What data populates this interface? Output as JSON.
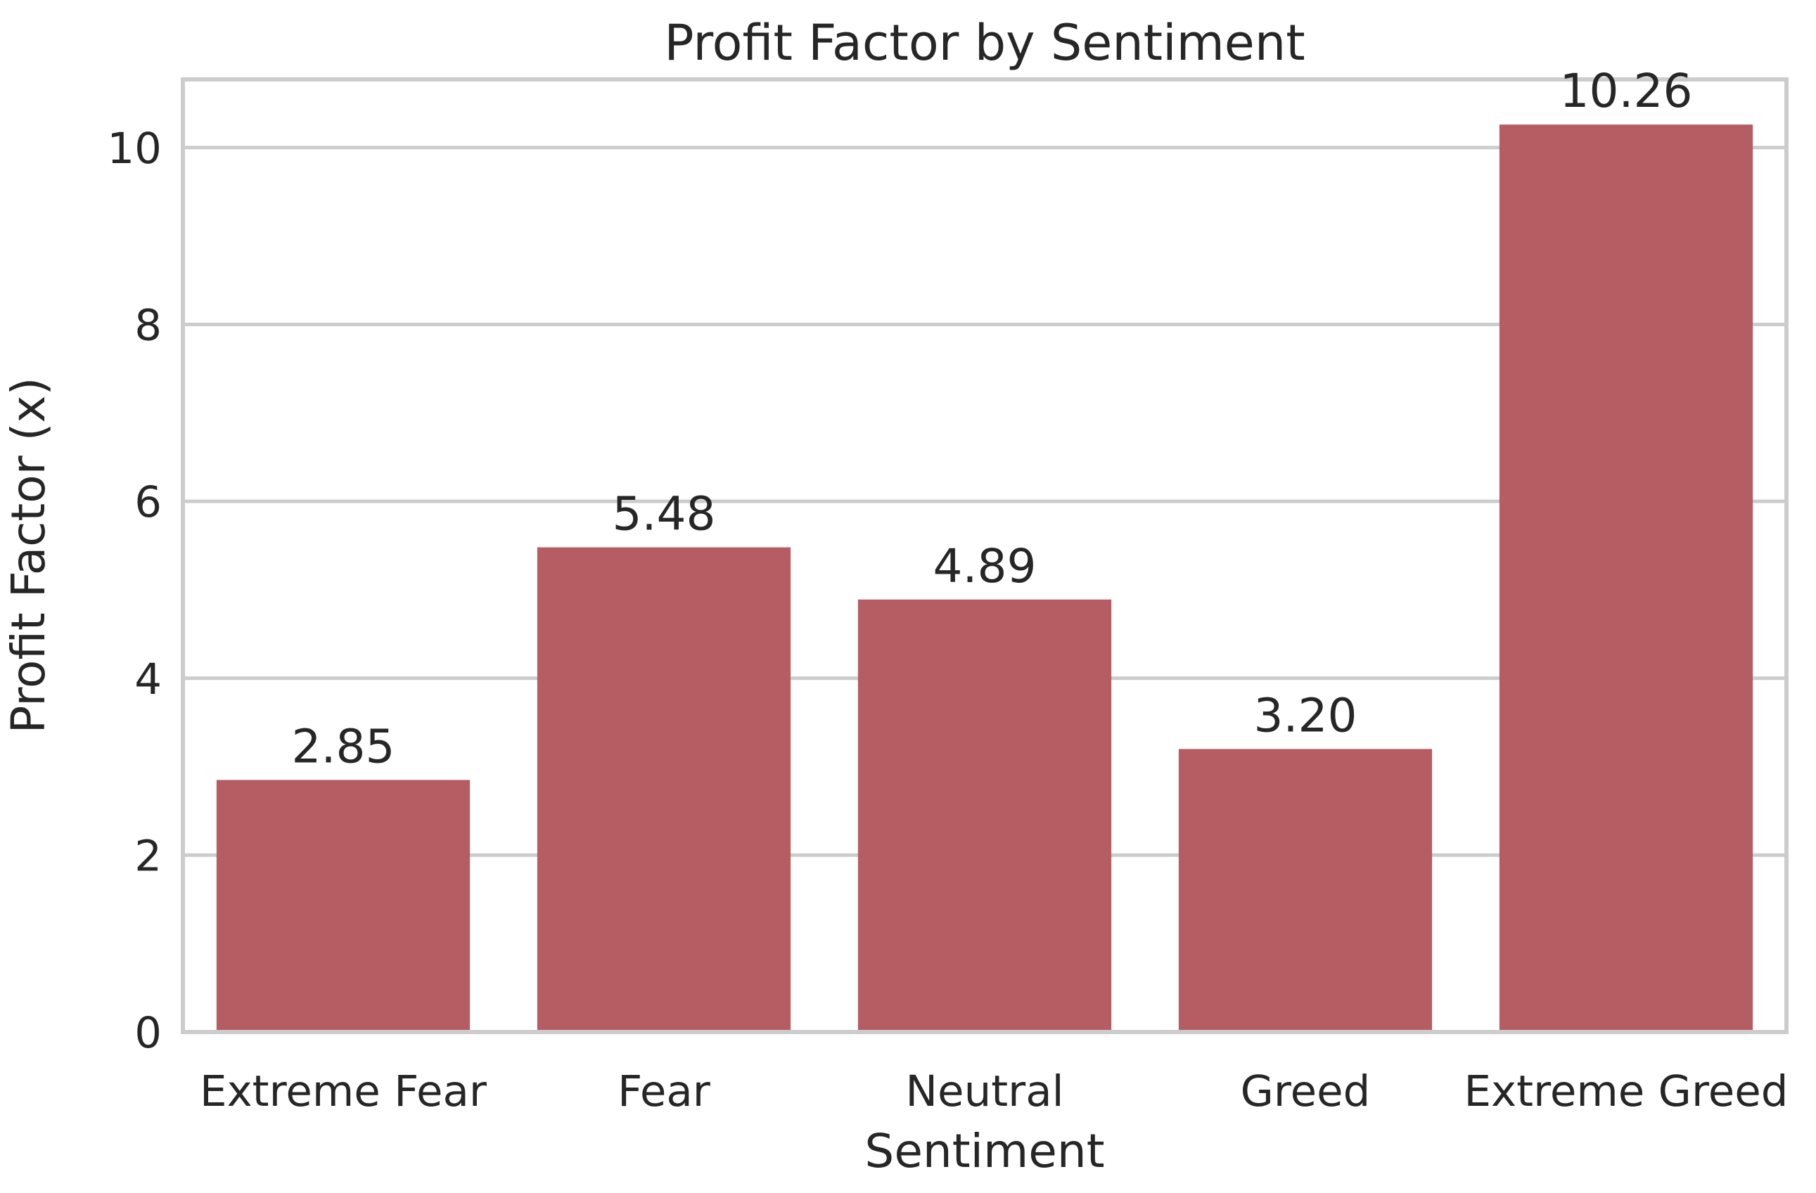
{
  "chart_data": {
    "type": "bar",
    "title": "Profit Factor by Sentiment",
    "xlabel": "Sentiment",
    "ylabel": "Profit Factor (x)",
    "categories": [
      "Extreme Fear",
      "Fear",
      "Neutral",
      "Greed",
      "Extreme Greed"
    ],
    "values": [
      2.85,
      5.48,
      4.89,
      3.2,
      10.26
    ],
    "value_labels": [
      "2.85",
      "5.48",
      "4.89",
      "3.20",
      "10.26"
    ],
    "ylim": [
      0,
      10.77
    ],
    "yticks": [
      0,
      2,
      4,
      6,
      8,
      10
    ],
    "grid": true,
    "bar_color": "#b55d62",
    "grid_color": "#cccccc",
    "text_color": "#262626"
  }
}
